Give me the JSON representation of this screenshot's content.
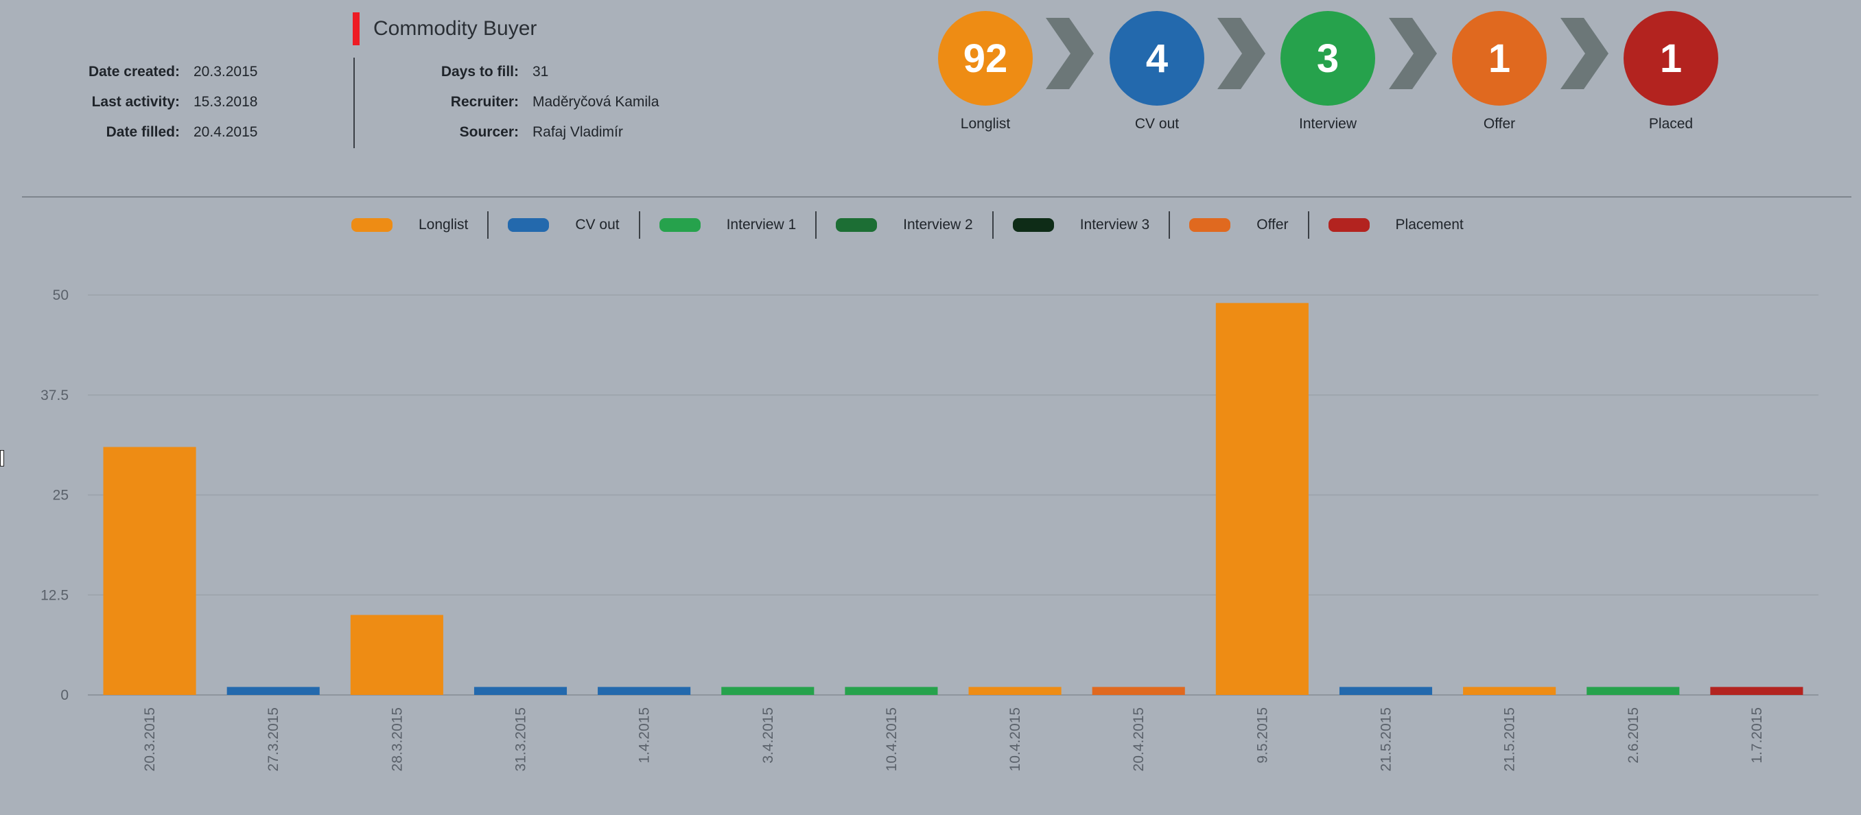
{
  "job": {
    "title": "Commodity Buyer"
  },
  "meta_left": [
    {
      "label": "Date created:",
      "value": "20.3.2015"
    },
    {
      "label": "Last activity:",
      "value": "15.3.2018"
    },
    {
      "label": "Date filled:",
      "value": "20.4.2015"
    }
  ],
  "meta_right": [
    {
      "label": "Days to fill:",
      "value": "31"
    },
    {
      "label": "Recruiter:",
      "value": "Maděryčová Kamila"
    },
    {
      "label": "Sourcer:",
      "value": "Rafaj Vladimír"
    }
  ],
  "pipeline": [
    {
      "count": "92",
      "label": "Longlist",
      "color": "#ee8c14"
    },
    {
      "count": "4",
      "label": "CV out",
      "color": "#2369ad"
    },
    {
      "count": "3",
      "label": "Interview",
      "color": "#26a24c"
    },
    {
      "count": "1",
      "label": "Offer",
      "color": "#e0691f"
    },
    {
      "count": "1",
      "label": "Placed",
      "color": "#b3231f"
    }
  ],
  "legend": [
    {
      "label": "Longlist",
      "color": "#ee8c14"
    },
    {
      "label": "CV out",
      "color": "#2369ad"
    },
    {
      "label": "Interview 1",
      "color": "#26a24c"
    },
    {
      "label": "Interview 2",
      "color": "#1c6e34"
    },
    {
      "label": "Interview 3",
      "color": "#0e2c17"
    },
    {
      "label": "Offer",
      "color": "#e0691f"
    },
    {
      "label": "Placement",
      "color": "#b3231f"
    }
  ],
  "chart_data": {
    "type": "bar",
    "categories": [
      "20.3.2015",
      "27.3.2015",
      "28.3.2015",
      "31.3.2015",
      "1.4.2015",
      "3.4.2015",
      "10.4.2015",
      "10.4.2015",
      "20.4.2015",
      "9.5.2015",
      "21.5.2015",
      "21.5.2015",
      "2.6.2015",
      "1.7.2015"
    ],
    "values": [
      31,
      1,
      10,
      1,
      1,
      1,
      1,
      1,
      1,
      49,
      1,
      1,
      1,
      1
    ],
    "bar_series": [
      "Longlist",
      "CV out",
      "Longlist",
      "CV out",
      "CV out",
      "Interview 1",
      "Interview 1",
      "Longlist",
      "Offer",
      "Longlist",
      "CV out",
      "Longlist",
      "Interview 1",
      "Placement"
    ],
    "yticks": [
      "0",
      "12.5",
      "25",
      "37.5",
      "50"
    ],
    "ylim": [
      0,
      50
    ],
    "grid": true,
    "legend_position": "top"
  }
}
